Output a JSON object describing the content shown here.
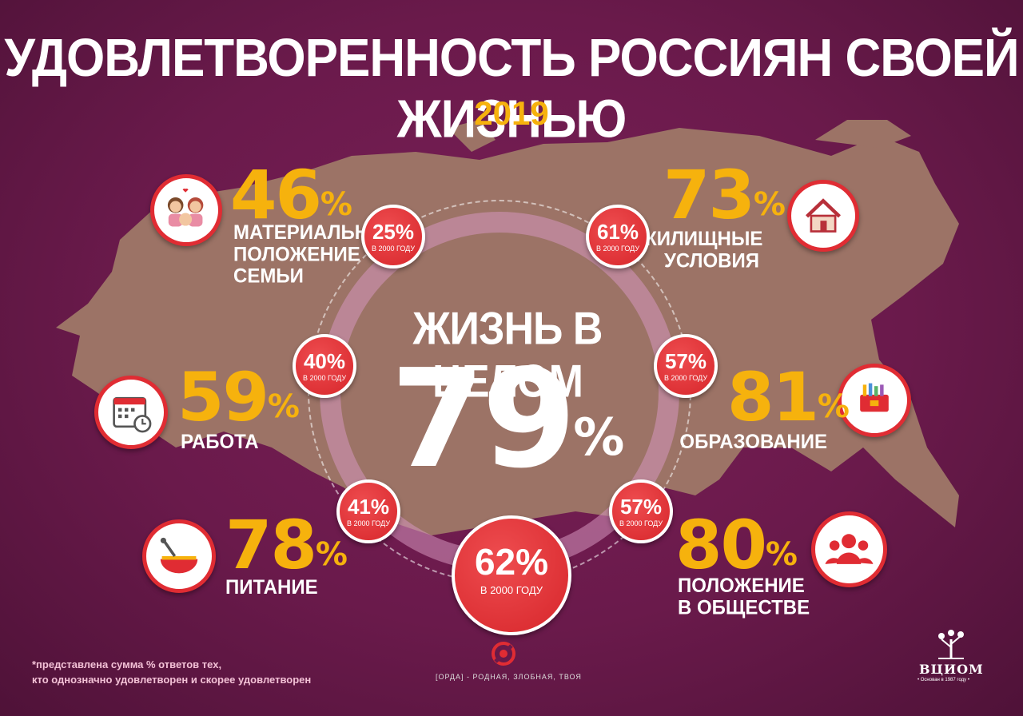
{
  "title": "УДОВЛЕТВОРЕННОСТЬ РОССИЯН СВОЕЙ ЖИЗНЬЮ",
  "year": "2019",
  "colors": {
    "background": "#6a1a4b",
    "accent": "#f6b20d",
    "bubble": "#e02c33",
    "map": "#9e7568"
  },
  "overall": {
    "label": "ЖИЗНЬ В ЦЕЛОМ",
    "value": "79",
    "unit": "%",
    "previous": "62%",
    "previous_label": "В 2000 ГОДУ"
  },
  "categories": [
    {
      "id": "family",
      "value": "46",
      "unit": "%",
      "label": "МАТЕРИАЛЬНОЕ\nПОЛОЖЕНИЕ\nСЕМЬИ",
      "previous": "25%",
      "previous_label": "В 2000 ГОДУ",
      "icon": "family-icon"
    },
    {
      "id": "housing",
      "value": "73",
      "unit": "%",
      "label": "ЖИЛИЩНЫЕ\nУСЛОВИЯ",
      "previous": "61%",
      "previous_label": "В 2000 ГОДУ",
      "icon": "house-icon"
    },
    {
      "id": "work",
      "value": "59",
      "unit": "%",
      "label": "РАБОТА",
      "previous": "40%",
      "previous_label": "В 2000 ГОДУ",
      "icon": "calendar-clock-icon"
    },
    {
      "id": "education",
      "value": "81",
      "unit": "%",
      "label": "ОБРАЗОВАНИЕ",
      "previous": "57%",
      "previous_label": "В 2000 ГОДУ",
      "icon": "school-supplies-icon"
    },
    {
      "id": "food",
      "value": "78",
      "unit": "%",
      "label": "ПИТАНИЕ",
      "previous": "41%",
      "previous_label": "В 2000 ГОДУ",
      "icon": "soup-bowl-icon"
    },
    {
      "id": "society",
      "value": "80",
      "unit": "%",
      "label": "ПОЛОЖЕНИЕ\nВ ОБЩЕСТВЕ",
      "previous": "57%",
      "previous_label": "В 2000 ГОДУ",
      "icon": "people-group-icon"
    }
  ],
  "footnote": "*представлена сумма % ответов тех,\nкто однозначно удовлетворен и скорее удовлетворен",
  "orda_tagline": "[ОРДА] - РОДНАЯ, ЗЛОБНАЯ, ТВОЯ",
  "vciom": {
    "name": "ВЦИОМ",
    "sub": "• Основан в 1987 году •"
  }
}
